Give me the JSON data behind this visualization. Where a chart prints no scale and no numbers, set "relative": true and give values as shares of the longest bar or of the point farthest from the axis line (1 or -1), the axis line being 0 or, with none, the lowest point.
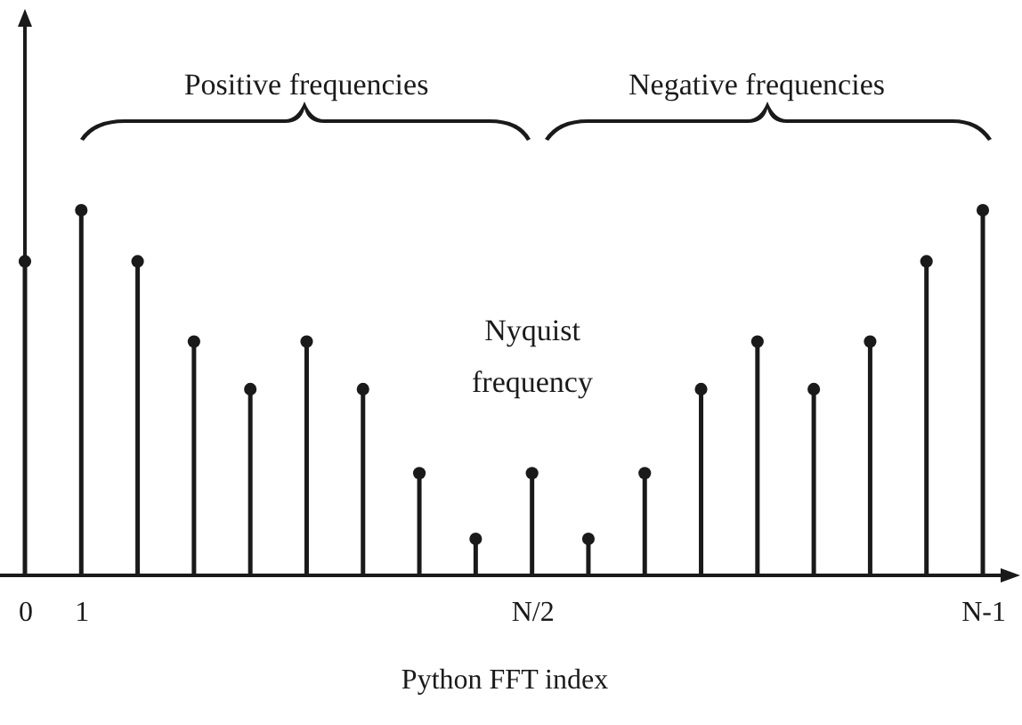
{
  "chart_data": {
    "type": "lollipop",
    "relative": true,
    "xlabel": "Python FFT index",
    "categories": [
      "0",
      "1",
      null,
      null,
      null,
      null,
      null,
      null,
      null,
      "N/2",
      null,
      null,
      null,
      null,
      null,
      null,
      null,
      "N-1"
    ],
    "values": [
      0.86,
      1,
      0.86,
      0.64,
      0.51,
      0.64,
      0.51,
      0.28,
      0.1,
      0.28,
      0.1,
      0.28,
      0.51,
      0.64,
      0.51,
      0.64,
      0.86,
      1
    ],
    "color": "#1a1a1a",
    "marker": "circle",
    "annotations": [
      "Positive frequencies",
      "Negative frequencies",
      "Nyquist frequency"
    ]
  }
}
